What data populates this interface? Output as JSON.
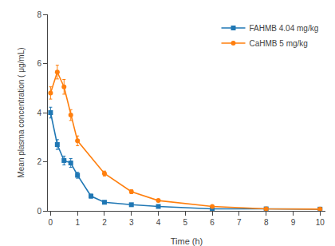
{
  "chart_data": {
    "type": "line",
    "xlabel": "Time (h)",
    "ylabel": "Mean plasma concentration ( μg/mL)",
    "xlim": [
      -0.1,
      10.2
    ],
    "ylim": [
      0,
      8
    ],
    "xticks": [
      0,
      1,
      2,
      3,
      4,
      5,
      6,
      7,
      8,
      9,
      10
    ],
    "yticks": [
      0,
      2,
      4,
      6,
      8
    ],
    "grid": false,
    "legend": "upper right",
    "series": [
      {
        "name": "FAHMB 4.04 mg/kg",
        "marker": "square",
        "x": [
          0,
          0.25,
          0.5,
          0.75,
          1.0,
          1.5,
          2.0,
          3.0,
          4.0,
          6.0,
          8.0,
          10.0
        ],
        "values": [
          4.0,
          2.7,
          2.05,
          1.95,
          1.45,
          0.6,
          0.35,
          0.25,
          0.18,
          0.08,
          0.08,
          0.07
        ],
        "yerr": [
          0.22,
          0.2,
          0.18,
          0.18,
          0.12,
          0.08,
          0.06,
          0.05,
          0.04,
          0.03,
          0.03,
          0.02
        ]
      },
      {
        "name": "CaHMB 5 mg/kg",
        "marker": "circle",
        "x": [
          0,
          0.25,
          0.5,
          0.75,
          1.0,
          2.0,
          3.0,
          4.0,
          6.0,
          8.0,
          10.0
        ],
        "values": [
          4.8,
          5.65,
          5.05,
          3.9,
          2.85,
          1.52,
          0.78,
          0.42,
          0.18,
          0.08,
          0.07
        ],
        "yerr": [
          0.25,
          0.28,
          0.3,
          0.22,
          0.2,
          0.1,
          0.08,
          0.05,
          0.04,
          0.03,
          0.02
        ]
      }
    ]
  }
}
